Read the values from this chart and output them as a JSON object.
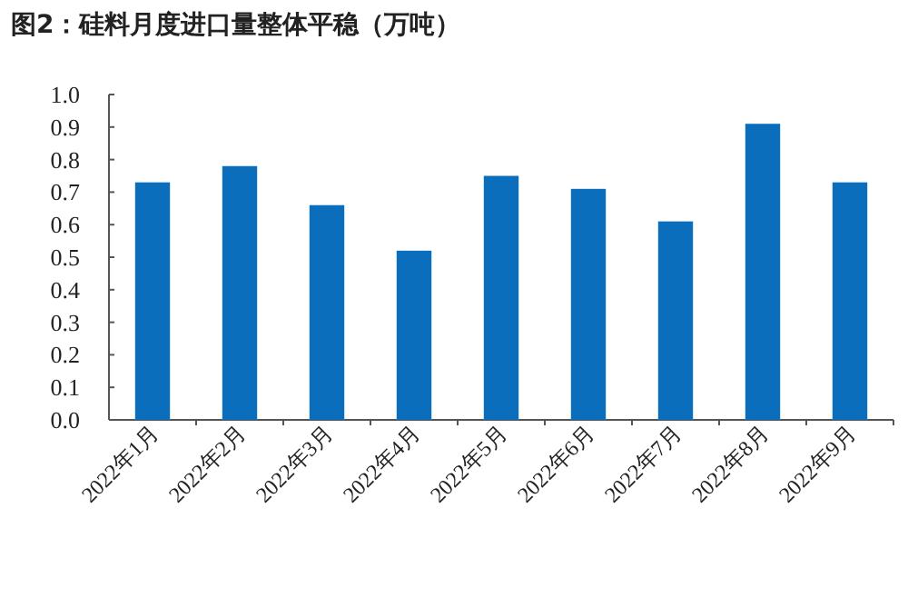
{
  "chart_data": {
    "type": "bar",
    "title": "图2：硅料月度进口量整体平稳（万吨）",
    "categories": [
      "2022年1月",
      "2022年2月",
      "2022年3月",
      "2022年4月",
      "2022年5月",
      "2022年6月",
      "2022年7月",
      "2022年8月",
      "2022年9月"
    ],
    "values": [
      0.73,
      0.78,
      0.66,
      0.52,
      0.75,
      0.71,
      0.61,
      0.91,
      0.73
    ],
    "color": "#0a6ebd",
    "ylim": [
      0,
      1.0
    ],
    "yticks": [
      {
        "value": 0,
        "label": "0.0"
      },
      {
        "value": 0.1,
        "label": "0.1"
      },
      {
        "value": 0.2,
        "label": "0.2"
      },
      {
        "value": 0.3,
        "label": "0.3"
      },
      {
        "value": 0.4,
        "label": "0.4"
      },
      {
        "value": 0.5,
        "label": "0.5"
      },
      {
        "value": 0.6,
        "label": "0.6"
      },
      {
        "value": 0.7,
        "label": "0.7"
      },
      {
        "value": 0.8,
        "label": "0.8"
      },
      {
        "value": 0.9,
        "label": "0.9"
      },
      {
        "value": 1.0,
        "label": "1.0"
      }
    ],
    "grid": false
  }
}
